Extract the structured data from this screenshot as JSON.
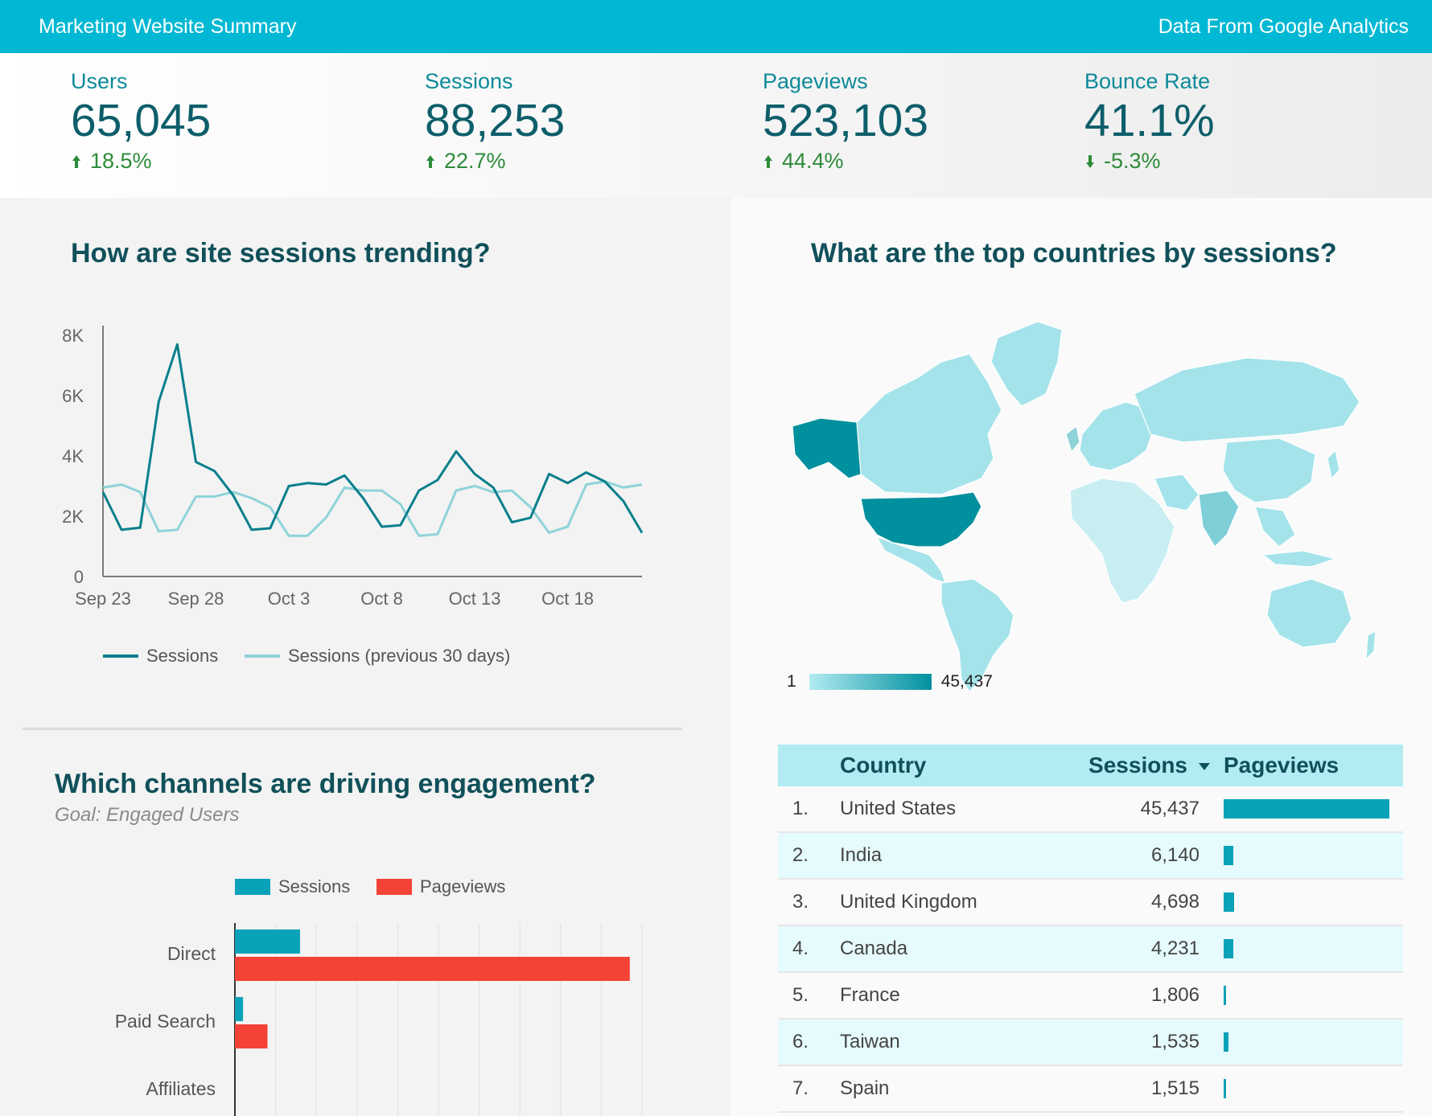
{
  "header": {
    "title": "Marketing Website Summary",
    "source": "Data From Google Analytics"
  },
  "kpis": [
    {
      "label": "Users",
      "value": "65,045",
      "delta": "18.5%",
      "direction": "up"
    },
    {
      "label": "Sessions",
      "value": "88,253",
      "delta": "22.7%",
      "direction": "up"
    },
    {
      "label": "Pageviews",
      "value": "523,103",
      "delta": "44.4%",
      "direction": "up"
    },
    {
      "label": "Bounce Rate",
      "value": "41.1%",
      "delta": "-5.3%",
      "direction": "down"
    }
  ],
  "trend": {
    "title": "How are site sessions trending?",
    "legend": [
      "Sessions",
      "Sessions (previous 30 days)"
    ]
  },
  "map": {
    "title": "What are the top countries by sessions?",
    "scale_min": "1",
    "scale_max": "45,437"
  },
  "channels": {
    "title": "Which channels are driving engagement?",
    "goal": "Goal: Engaged Users",
    "legend": [
      "Sessions",
      "Pageviews"
    ]
  },
  "table": {
    "headers": {
      "country": "Country",
      "sessions": "Sessions",
      "pageviews": "Pageviews"
    },
    "rows": [
      {
        "rank": "1.",
        "country": "United States",
        "sessions": "45,437",
        "pv_fraction": 1.0
      },
      {
        "rank": "2.",
        "country": "India",
        "sessions": "6,140",
        "pv_fraction": 0.06
      },
      {
        "rank": "3.",
        "country": "United Kingdom",
        "sessions": "4,698",
        "pv_fraction": 0.065
      },
      {
        "rank": "4.",
        "country": "Canada",
        "sessions": "4,231",
        "pv_fraction": 0.06
      },
      {
        "rank": "5.",
        "country": "France",
        "sessions": "1,806",
        "pv_fraction": 0.015
      },
      {
        "rank": "6.",
        "country": "Taiwan",
        "sessions": "1,535",
        "pv_fraction": 0.03
      },
      {
        "rank": "7.",
        "country": "Spain",
        "sessions": "1,515",
        "pv_fraction": 0.015
      }
    ]
  },
  "colors": {
    "accent": "#00b8d4",
    "sessions_line": "#0a7f8c",
    "previous_line": "#8fd3d9",
    "sessions_bar": "#0aa2b8",
    "pageviews_bar": "#f44336",
    "map_highlight": "#00909e",
    "map_base": "#a5e3ea"
  },
  "chart_data": [
    {
      "type": "line",
      "x_ticks": [
        "Sep 23",
        "Sep 28",
        "Oct 3",
        "Oct 8",
        "Oct 13",
        "Oct 18"
      ],
      "y_ticks": [
        "0",
        "2K",
        "4K",
        "6K",
        "8K"
      ],
      "ylim": [
        0,
        8000
      ],
      "series": [
        {
          "name": "Sessions",
          "values": [
            2800,
            1550,
            1620,
            5800,
            7700,
            3800,
            3500,
            2700,
            1550,
            1600,
            3000,
            3100,
            3050,
            3350,
            2600,
            1650,
            1700,
            2850,
            3200,
            4150,
            3400,
            2950,
            1800,
            1950,
            3400,
            3100,
            3450,
            3150,
            2500,
            1450
          ]
        },
        {
          "name": "Sessions (previous 30 days)",
          "values": [
            2950,
            3050,
            2800,
            1500,
            1550,
            2650,
            2650,
            2800,
            2600,
            2300,
            1350,
            1350,
            1950,
            2950,
            2850,
            2850,
            2400,
            1350,
            1400,
            2850,
            3000,
            2800,
            2850,
            2300,
            1450,
            1650,
            3050,
            3150,
            2950,
            3050
          ]
        }
      ]
    },
    {
      "type": "bar",
      "orientation": "horizontal",
      "categories": [
        "Direct",
        "Paid Search",
        "Affiliates"
      ],
      "series": [
        {
          "name": "Sessions",
          "values": [
            16,
            2,
            0
          ]
        },
        {
          "name": "Pageviews",
          "values": [
            97,
            8,
            0
          ]
        }
      ],
      "xlim": [
        0,
        100
      ]
    }
  ]
}
